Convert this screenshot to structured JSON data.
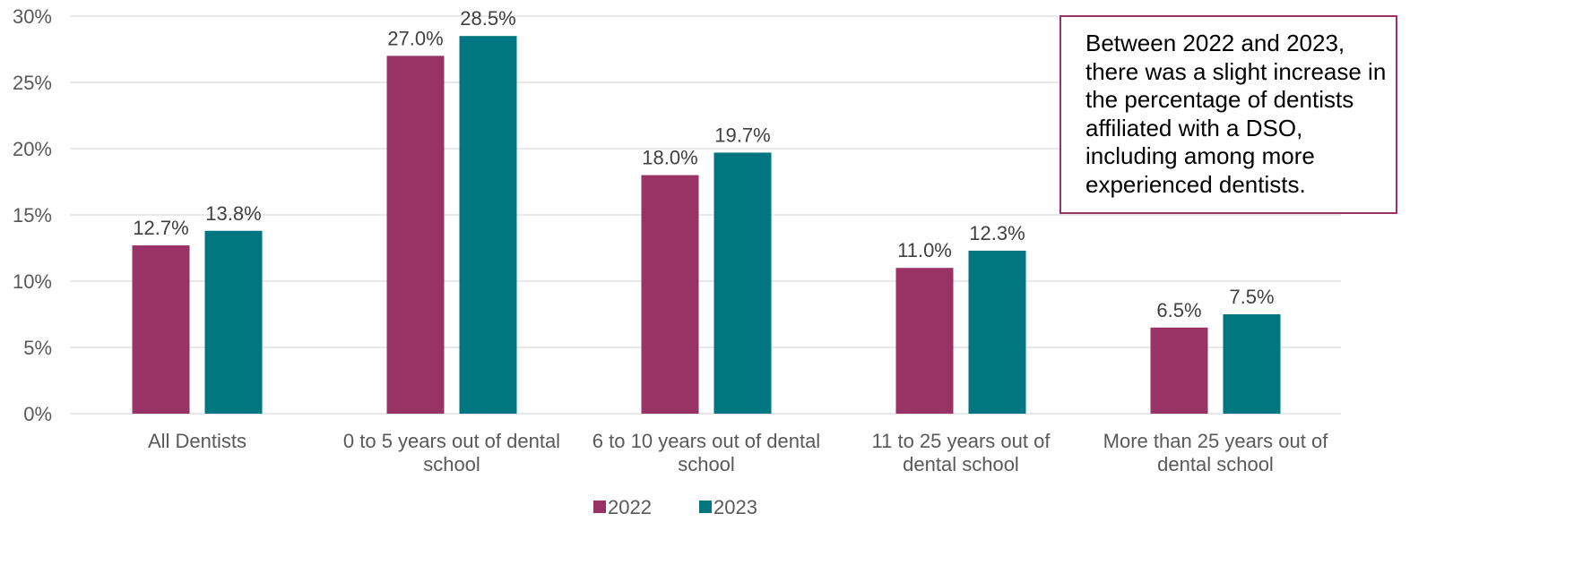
{
  "chart_data": {
    "type": "bar",
    "categories": [
      [
        "All Dentists"
      ],
      [
        "0 to 5 years out of dental",
        "school"
      ],
      [
        "6 to 10 years out of dental",
        "school"
      ],
      [
        "11 to 25 years out of",
        "dental school"
      ],
      [
        "More than 25 years out of",
        "dental school"
      ]
    ],
    "series": [
      {
        "name": "2022",
        "color": "#993366",
        "values": [
          12.7,
          27.0,
          18.0,
          11.0,
          6.5
        ],
        "labels": [
          "12.7%",
          "27.0%",
          "18.0%",
          "11.0%",
          "6.5%"
        ]
      },
      {
        "name": "2023",
        "color": "#007780",
        "values": [
          13.8,
          28.5,
          19.7,
          12.3,
          7.5
        ],
        "labels": [
          "13.8%",
          "28.5%",
          "19.7%",
          "12.3%",
          "7.5%"
        ]
      }
    ],
    "y_ticks": [
      0,
      5,
      10,
      15,
      20,
      25,
      30
    ],
    "y_tick_labels": [
      "0%",
      "5%",
      "10%",
      "15%",
      "20%",
      "25%",
      "30%"
    ],
    "ylim": [
      0,
      30
    ],
    "grid": true,
    "legend_position": "bottom",
    "annotation": "Between 2022 and 2023, there was a slight increase in the percentage of dentists affiliated with a DSO, including among more experienced dentists."
  }
}
